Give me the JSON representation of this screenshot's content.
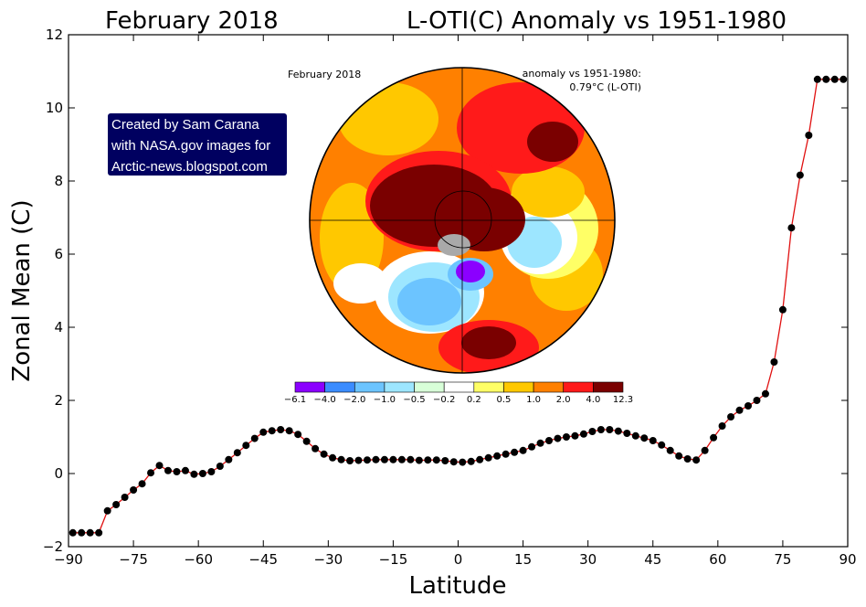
{
  "chart_data": {
    "type": "line",
    "title_left": "February 2018",
    "title_right": "L-OTI(C) Anomaly vs 1951-1980",
    "xlabel": "Latitude",
    "ylabel": "Zonal Mean (C)",
    "xlim": [
      -90,
      90
    ],
    "ylim": [
      -2,
      12
    ],
    "xticks": [
      -90,
      -75,
      -60,
      -45,
      -30,
      -15,
      0,
      15,
      30,
      45,
      60,
      75,
      90
    ],
    "xtick_labels": [
      "−90",
      "−75",
      "−60",
      "−45",
      "−30",
      "−15",
      "0",
      "15",
      "30",
      "45",
      "60",
      "75",
      "90"
    ],
    "yticks": [
      -2,
      0,
      2,
      4,
      6,
      8,
      10,
      12
    ],
    "ytick_labels": [
      "−2",
      "0",
      "2",
      "4",
      "6",
      "8",
      "10",
      "12"
    ],
    "grid": false,
    "line_color": "#e01010",
    "marker_color": "#000000",
    "x": [
      -89,
      -87,
      -85,
      -83,
      -81,
      -79,
      -77,
      -75,
      -73,
      -71,
      -69,
      -67,
      -65,
      -63,
      -61,
      -59,
      -57,
      -55,
      -53,
      -51,
      -49,
      -47,
      -45,
      -43,
      -41,
      -39,
      -37,
      -35,
      -33,
      -31,
      -29,
      -27,
      -25,
      -23,
      -21,
      -19,
      -17,
      -15,
      -13,
      -11,
      -9,
      -7,
      -5,
      -3,
      -1,
      1,
      3,
      5,
      7,
      9,
      11,
      13,
      15,
      17,
      19,
      21,
      23,
      25,
      27,
      29,
      31,
      33,
      35,
      37,
      39,
      41,
      43,
      45,
      47,
      49,
      51,
      53,
      55,
      57,
      59,
      61,
      63,
      65,
      67,
      69,
      71,
      73,
      75,
      77,
      79,
      81,
      83,
      85,
      87,
      89
    ],
    "y": [
      -1.62,
      -1.62,
      -1.62,
      -1.62,
      -1.02,
      -0.85,
      -0.65,
      -0.45,
      -0.28,
      0.02,
      0.22,
      0.08,
      0.05,
      0.08,
      -0.02,
      0.0,
      0.05,
      0.2,
      0.38,
      0.57,
      0.77,
      0.96,
      1.13,
      1.17,
      1.2,
      1.17,
      1.07,
      0.88,
      0.68,
      0.53,
      0.43,
      0.38,
      0.35,
      0.36,
      0.37,
      0.38,
      0.38,
      0.38,
      0.38,
      0.38,
      0.36,
      0.37,
      0.37,
      0.35,
      0.32,
      0.31,
      0.33,
      0.38,
      0.43,
      0.48,
      0.53,
      0.58,
      0.63,
      0.73,
      0.83,
      0.9,
      0.96,
      1.0,
      1.03,
      1.08,
      1.15,
      1.2,
      1.2,
      1.16,
      1.1,
      1.03,
      0.97,
      0.9,
      0.78,
      0.63,
      0.48,
      0.4,
      0.37,
      0.63,
      0.98,
      1.3,
      1.55,
      1.73,
      1.85,
      2.0,
      2.18,
      3.05,
      4.48,
      6.72,
      8.16,
      9.25,
      10.78,
      10.78,
      10.78,
      10.78
    ]
  },
  "inset_map": {
    "label_month": "February 2018",
    "label_anomaly_line1": "anomaly vs 1951-1980:",
    "label_anomaly_line2": "0.79°C (L-OTI)",
    "colorbar_colors": [
      "#8b00ff",
      "#3b8cff",
      "#6cc4ff",
      "#9de6ff",
      "#d8ffd8",
      "#ffffff",
      "#ffff66",
      "#ffc800",
      "#ff8000",
      "#ff1a1a",
      "#7a0000"
    ],
    "colorbar_labels": [
      "−6.1",
      "−4.0",
      "−2.0",
      "−1.0",
      "−0.5",
      "−0.2",
      "0.2",
      "0.5",
      "1.0",
      "2.0",
      "4.0",
      "12.3"
    ]
  },
  "credit": {
    "line1": "Created by Sam Carana",
    "line2": "with NASA.gov images for",
    "line3": "Arctic-news.blogspot.com",
    "bg_color": "#000060"
  }
}
